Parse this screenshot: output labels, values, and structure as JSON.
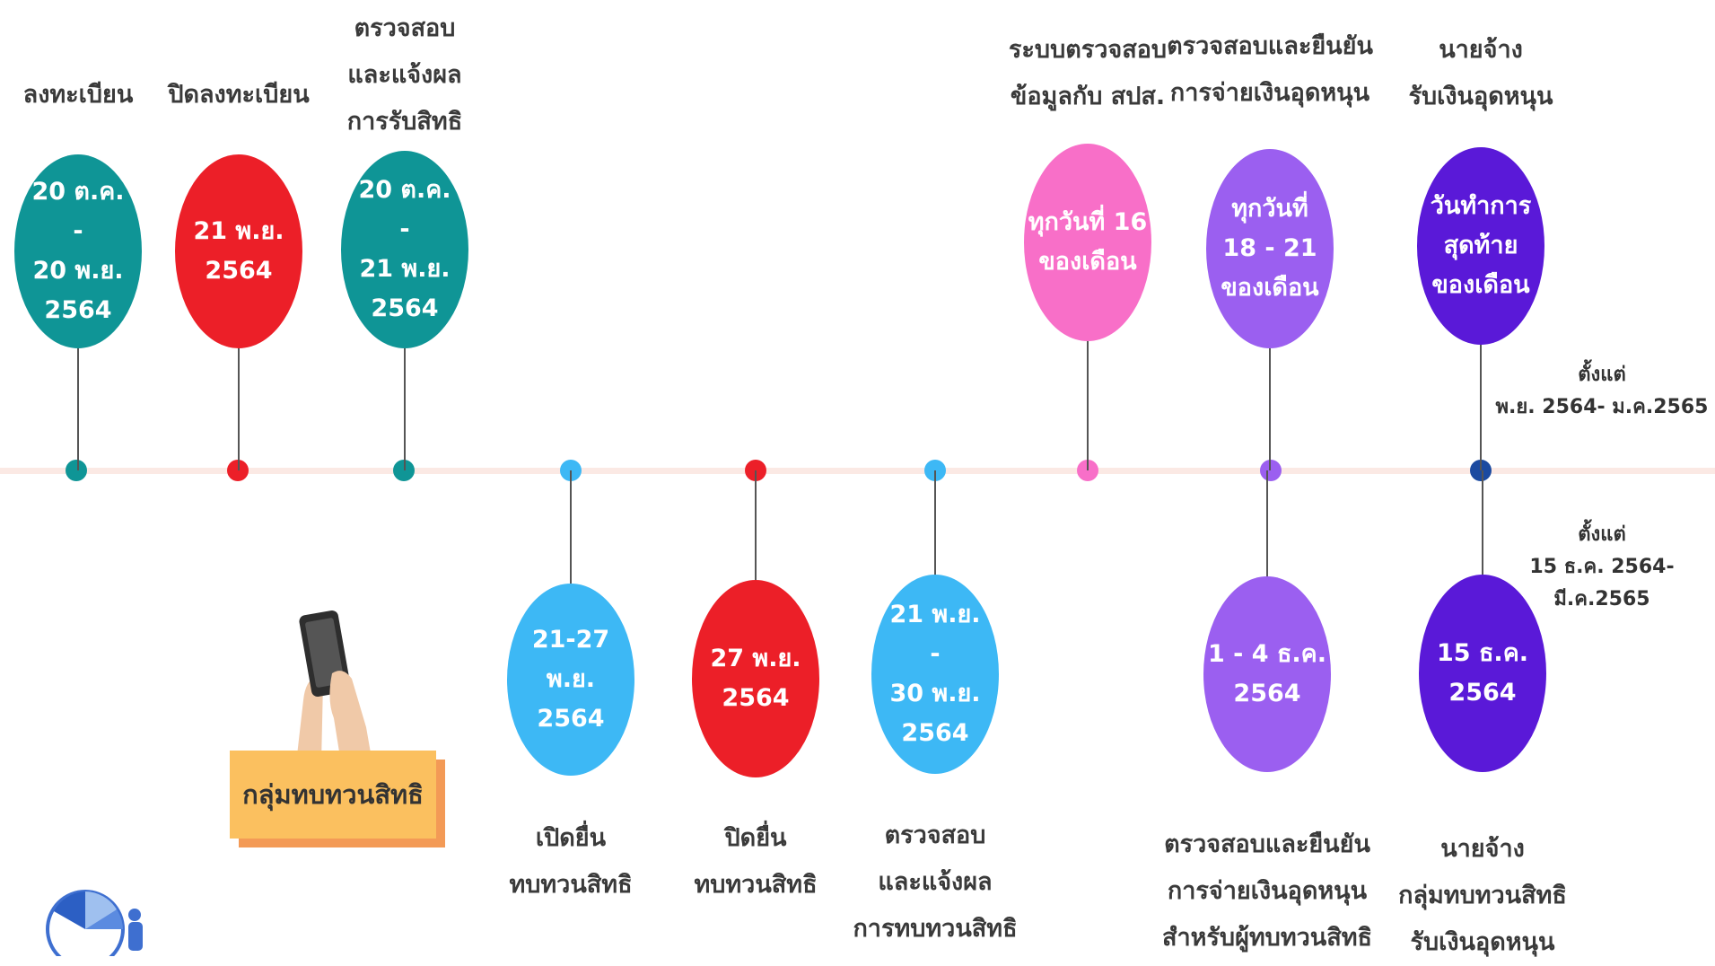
{
  "colors": {
    "teal": "#0f9596",
    "red": "#ec1f28",
    "sky": "#3db8f5",
    "pink": "#f86fc8",
    "purple": "#9b5ff0",
    "indigo": "#5a19d8",
    "navy": "#1b4aa0",
    "axis": "#fbe9e4"
  },
  "icons": [
    "hand-holding-phone-icon",
    "pie-chart-person-icon"
  ],
  "group_label": "กลุ่มทบทวนสิทธิ",
  "note_upper": "ตั้งแต่\nพ.ย. 2564- ม.ค.2565",
  "note_lower": "ตั้งแต่\n15 ธ.ค. 2564- มี.ค.2565",
  "upper_milestones": [
    {
      "caption": "ลงทะเบียน",
      "date": "20 ต.ค.\n-\n20 พ.ย.\n2564",
      "color": "teal"
    },
    {
      "caption": "ปิดลงทะเบียน",
      "date": "21 พ.ย.\n2564",
      "color": "red"
    },
    {
      "caption": "ตรวจสอบ\nและแจ้งผล\nการรับสิทธิ",
      "date": "20 ต.ค.\n-\n21 พ.ย.\n2564",
      "color": "teal"
    },
    {
      "caption": "ระบบตรวจสอบ\nข้อมูลกับ สปส.",
      "date": "ทุกวันที่ 16\nของเดือน",
      "color": "pink"
    },
    {
      "caption": "ตรวจสอบและยืนยัน\nการจ่ายเงินอุดหนุน",
      "date": "ทุกวันที่\n18 - 21\nของเดือน",
      "color": "purple"
    },
    {
      "caption": "นายจ้าง\nรับเงินอุดหนุน",
      "date": "วันทำการ\nสุดท้าย\nของเดือน",
      "color": "indigo"
    }
  ],
  "lower_milestones": [
    {
      "caption": "เปิดยื่น\nทบทวนสิทธิ",
      "date": "21-27 พ.ย.\n2564",
      "color": "sky"
    },
    {
      "caption": "ปิดยื่น\nทบทวนสิทธิ",
      "date": "27 พ.ย.\n2564",
      "color": "red"
    },
    {
      "caption": "ตรวจสอบ\nและแจ้งผล\nการทบทวนสิทธิ",
      "date": "21 พ.ย.\n-\n30 พ.ย.\n2564",
      "color": "sky"
    },
    {
      "caption": "ตรวจสอบและยืนยัน\nการจ่ายเงินอุดหนุน\nสำหรับผู้ทบทวนสิทธิ",
      "date": "1 - 4 ธ.ค.\n2564",
      "color": "purple"
    },
    {
      "caption": "นายจ้าง\nกลุ่มทบทวนสิทธิ\nรับเงินอุดหนุน",
      "date": "15 ธ.ค.\n2564",
      "color": "indigo"
    }
  ],
  "dots": [
    "teal",
    "red",
    "teal",
    "sky",
    "red",
    "sky",
    "pink",
    "purple",
    "navy"
  ]
}
